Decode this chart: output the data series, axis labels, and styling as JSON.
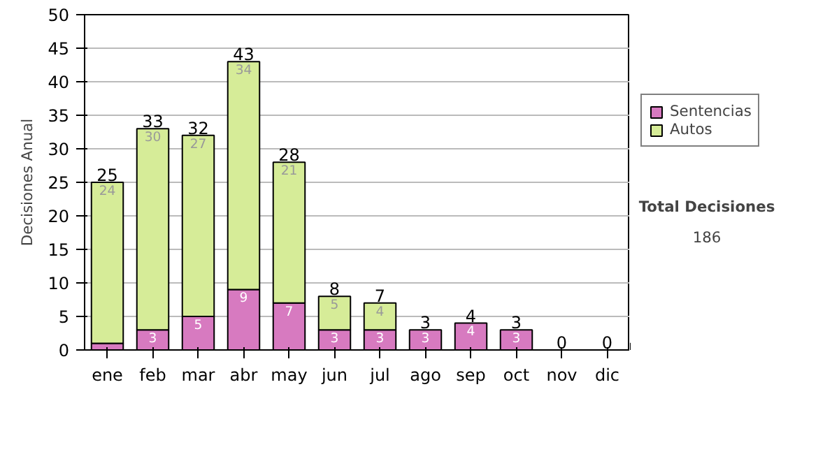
{
  "chart_data": {
    "type": "bar",
    "stacked": true,
    "ylabel": "Decisiones Anual",
    "categories": [
      "ene",
      "feb",
      "mar",
      "abr",
      "may",
      "jun",
      "jul",
      "ago",
      "sep",
      "oct",
      "nov",
      "dic"
    ],
    "series": [
      {
        "name": "Sentencias",
        "color": "#d77ac0",
        "values": [
          1,
          3,
          5,
          9,
          7,
          3,
          3,
          3,
          4,
          3,
          0,
          0
        ],
        "value_labels": [
          null,
          "3",
          "5",
          "9",
          "7",
          "3",
          "3",
          "3",
          "4",
          "3",
          null,
          null
        ]
      },
      {
        "name": "Autos",
        "color": "#d6ec98",
        "values": [
          24,
          30,
          27,
          34,
          21,
          5,
          4,
          0,
          0,
          0,
          0,
          0
        ],
        "value_labels": [
          "24",
          "30",
          "27",
          "34",
          "21",
          "5",
          "4",
          null,
          null,
          null,
          null,
          null
        ]
      }
    ],
    "totals": [
      "25",
      "33",
      "32",
      "43",
      "28",
      "8",
      "7",
      "3",
      "4",
      "3",
      "0",
      "0"
    ],
    "ylim": [
      0,
      50
    ],
    "yticks": [
      0,
      5,
      10,
      15,
      20,
      25,
      30,
      35,
      40,
      45,
      50
    ],
    "grid": "y",
    "legend": "right",
    "annotations": [
      "Total Decisiones",
      "186"
    ]
  }
}
